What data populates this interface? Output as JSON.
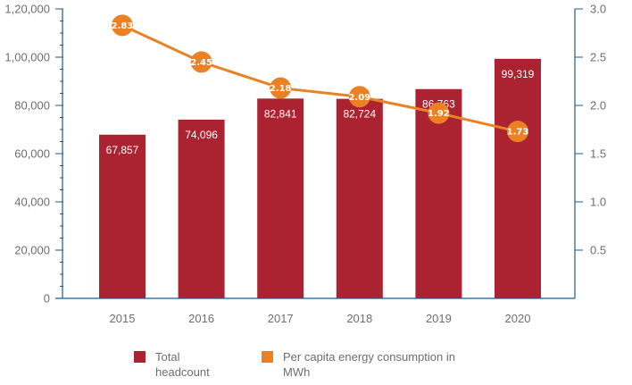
{
  "chart_data": {
    "type": "bar",
    "title": "",
    "xlabel": "",
    "ylabel": "",
    "categories": [
      "2015",
      "2016",
      "2017",
      "2018",
      "2019",
      "2020"
    ],
    "series": [
      {
        "name": "Total headcount",
        "type": "bar",
        "axis": "left",
        "color": "#ab2330",
        "values": [
          67857,
          74096,
          82841,
          82724,
          86763,
          99319
        ],
        "labels": [
          "67,857",
          "74,096",
          "82,841",
          "82,724",
          "86,763",
          "99,319"
        ]
      },
      {
        "name": "Per capita energy consumption in MWh",
        "type": "line",
        "axis": "right",
        "color": "#ea8125",
        "values": [
          2.83,
          2.45,
          2.18,
          2.09,
          1.92,
          1.73
        ],
        "labels": [
          "2.83",
          "2.45",
          "2.18",
          "2.09",
          "1.92",
          "1.73"
        ]
      }
    ],
    "y_left": {
      "ylim": [
        0,
        120000
      ],
      "ticks": [
        0,
        20000,
        40000,
        60000,
        80000,
        100000,
        120000
      ],
      "tick_labels": [
        "0",
        "20,000",
        "40,000",
        "60,000",
        "80,000",
        "1,00,000",
        "1,20,000"
      ]
    },
    "y_right": {
      "ylim": [
        0,
        3.0
      ],
      "ticks": [
        0.5,
        1.0,
        1.5,
        2.0,
        2.5,
        3.0
      ],
      "tick_labels": [
        "0.5",
        "1.0",
        "1.5",
        "2.0",
        "2.5",
        "3.0"
      ]
    },
    "grid": false,
    "legend": {
      "position": "bottom",
      "items": [
        {
          "label": "Total\nheadcount",
          "color": "#ab2330"
        },
        {
          "label": "Per capita energy consumption in\nMWh",
          "color": "#ea8125"
        }
      ]
    },
    "axis_color": "#1f5c8b"
  }
}
